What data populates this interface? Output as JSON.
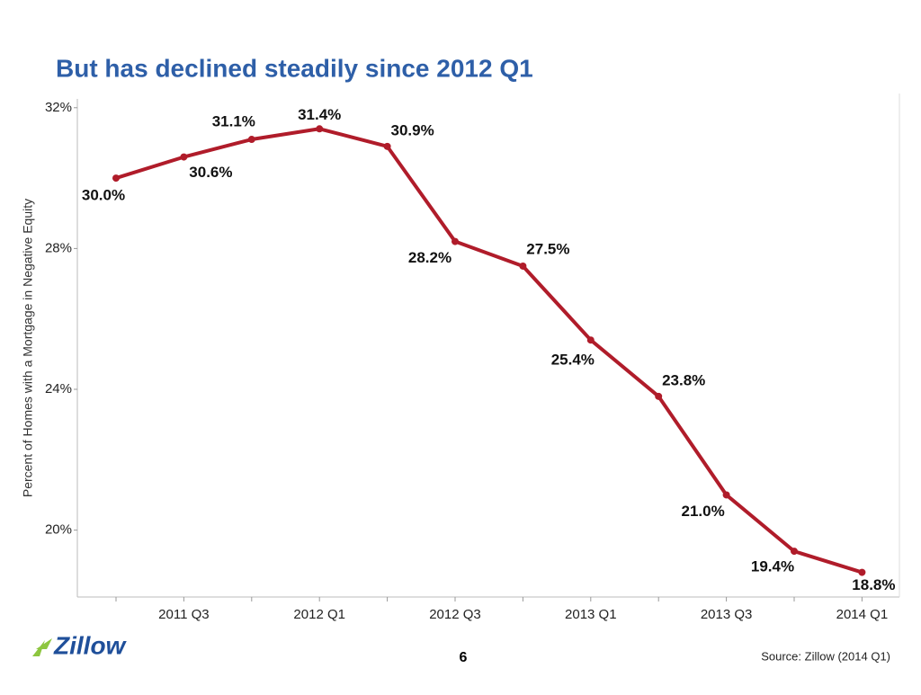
{
  "chart_data": {
    "type": "line",
    "title": "But has declined steadily since 2012 Q1",
    "y_label": "Percent of Homes with a Mortgage in Negative Equity",
    "categories": [
      null,
      "2011 Q3",
      null,
      "2012 Q1",
      null,
      "2012 Q3",
      null,
      "2013 Q1",
      null,
      "2013 Q3",
      null,
      "2014 Q1"
    ],
    "series": [
      {
        "name": "Negative equity",
        "color": "#b01c2a",
        "values": [
          30.0,
          30.6,
          31.1,
          31.4,
          30.9,
          28.2,
          27.5,
          25.4,
          23.8,
          21.0,
          19.4,
          18.8
        ],
        "value_labels": [
          "30.0%",
          "30.6%",
          "31.1%",
          "31.4%",
          "30.9%",
          "28.2%",
          "27.5%",
          "25.4%",
          "23.8%",
          "21.0%",
          "19.4%",
          "18.8%"
        ]
      }
    ],
    "ylim": [
      18.1,
      32.25
    ],
    "yticks": [
      {
        "value": 20,
        "label": "20%"
      },
      {
        "value": 24,
        "label": "24%"
      },
      {
        "value": 28,
        "label": "28%"
      },
      {
        "value": 32,
        "label": "32%"
      }
    ],
    "grid": false
  },
  "slide": {
    "logo": "Zillow",
    "page_number": "6",
    "source": "Source: Zillow (2014 Q1)"
  }
}
